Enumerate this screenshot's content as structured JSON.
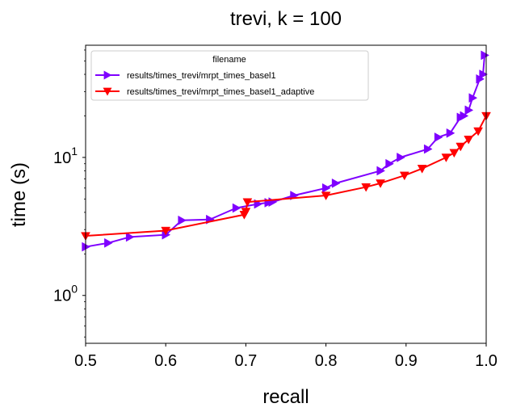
{
  "chart_data": {
    "type": "line",
    "title": "trevi, k = 100",
    "xlabel": "recall",
    "ylabel": "time (s)",
    "xlim": [
      0.5,
      1.0
    ],
    "ylim": [
      0.45,
      65
    ],
    "yscale": "log",
    "x_ticks": [
      "0.5",
      "0.6",
      "0.7",
      "0.8",
      "0.9",
      "1.0"
    ],
    "y_ticks": [
      {
        "base": "10",
        "exp": "0",
        "value": 1
      },
      {
        "base": "10",
        "exp": "1",
        "value": 10
      }
    ],
    "legend": {
      "title": "filename",
      "placement": "upper left"
    },
    "series": [
      {
        "name": "results/times_trevi/mrpt_times_basel1",
        "color": "#7f00ff",
        "marker": "triangle-right",
        "x": [
          0.5,
          0.528,
          0.555,
          0.6,
          0.62,
          0.655,
          0.688,
          0.715,
          0.728,
          0.733,
          0.76,
          0.8,
          0.812,
          0.868,
          0.879,
          0.893,
          0.927,
          0.94,
          0.955,
          0.968,
          0.972,
          0.978,
          0.983,
          0.992,
          0.996,
          0.998
        ],
        "y": [
          2.25,
          2.4,
          2.65,
          2.75,
          3.5,
          3.55,
          4.3,
          4.6,
          4.7,
          4.75,
          5.3,
          6.0,
          6.5,
          8.0,
          9.0,
          10.0,
          11.5,
          14.0,
          15.0,
          19.5,
          20.0,
          22.0,
          27.0,
          37.0,
          40.0,
          55.0
        ]
      },
      {
        "name": "results/times_trevi/mrpt_times_basel1_adaptive",
        "color": "#ff0000",
        "marker": "triangle-down",
        "x": [
          0.5,
          0.6,
          0.698,
          0.7,
          0.702,
          0.8,
          0.85,
          0.868,
          0.898,
          0.92,
          0.95,
          0.96,
          0.968,
          0.978,
          0.99,
          1.0
        ],
        "y": [
          2.7,
          2.95,
          3.85,
          4.05,
          4.75,
          5.3,
          6.1,
          6.5,
          7.4,
          8.3,
          10.0,
          10.8,
          12.0,
          13.5,
          15.5,
          20.0
        ]
      }
    ]
  }
}
